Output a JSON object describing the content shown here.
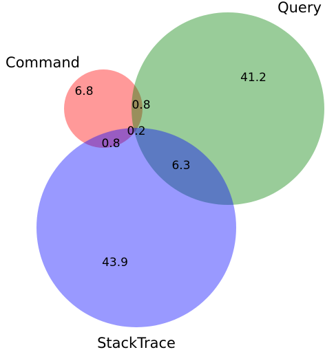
{
  "chart_data": {
    "type": "venn",
    "series": [
      {
        "name": "Command",
        "color": "#ff0000"
      },
      {
        "name": "Query",
        "color": "#008000"
      },
      {
        "name": "StackTrace",
        "color": "#0000ff"
      }
    ],
    "values": [
      6.8,
      41.2,
      43.9,
      0.8,
      0.8,
      6.3,
      0.2
    ]
  }
}
